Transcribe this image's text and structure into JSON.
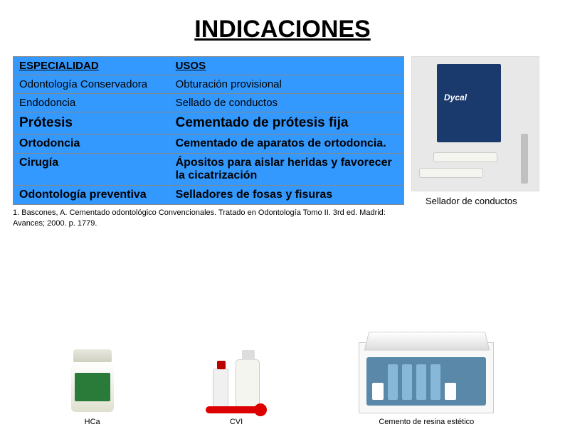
{
  "title": "INDICACIONES",
  "table": {
    "header": {
      "c1": "ESPECIALIDAD",
      "c2": "USOS"
    },
    "rows": [
      {
        "c1": " Odontología Conservadora",
        "c2": "Obturación provisional",
        "cls": ""
      },
      {
        "c1": "Endodoncia",
        "c2": "Sellado de conductos",
        "cls": ""
      },
      {
        "c1": "Prótesis",
        "c2": "Cementado de prótesis fija",
        "cls": "big"
      },
      {
        "c1": "Ortodoncia",
        "c2": "Cementado de aparatos de ortodoncia.",
        "cls": "med"
      },
      {
        "c1": "Cirugía",
        "c2": "Ápositos para aislar heridas y favorecer la cicatrización",
        "cls": "med"
      },
      {
        "c1": "Odontología preventiva",
        "c2": "Selladores de fosas y fisuras",
        "cls": "med"
      }
    ]
  },
  "citation": "1. Bascones, A. Cementado odontológico Convencionales. Tratado en Odontología Tomo II. 3rd ed. Madrid: Avances; 2000. p. 1779.",
  "right_caption": "Sellador de conductos",
  "dycal_label": "Dycal",
  "products": {
    "hca": "HCa",
    "cvi": "CVI",
    "resin": "Cemento de resina estético"
  },
  "colors": {
    "table_bg": "#3399ff",
    "dycal_box": "#1a3a6e",
    "jar_label": "#2a7a3a",
    "kit_insert": "#5a88a8"
  }
}
